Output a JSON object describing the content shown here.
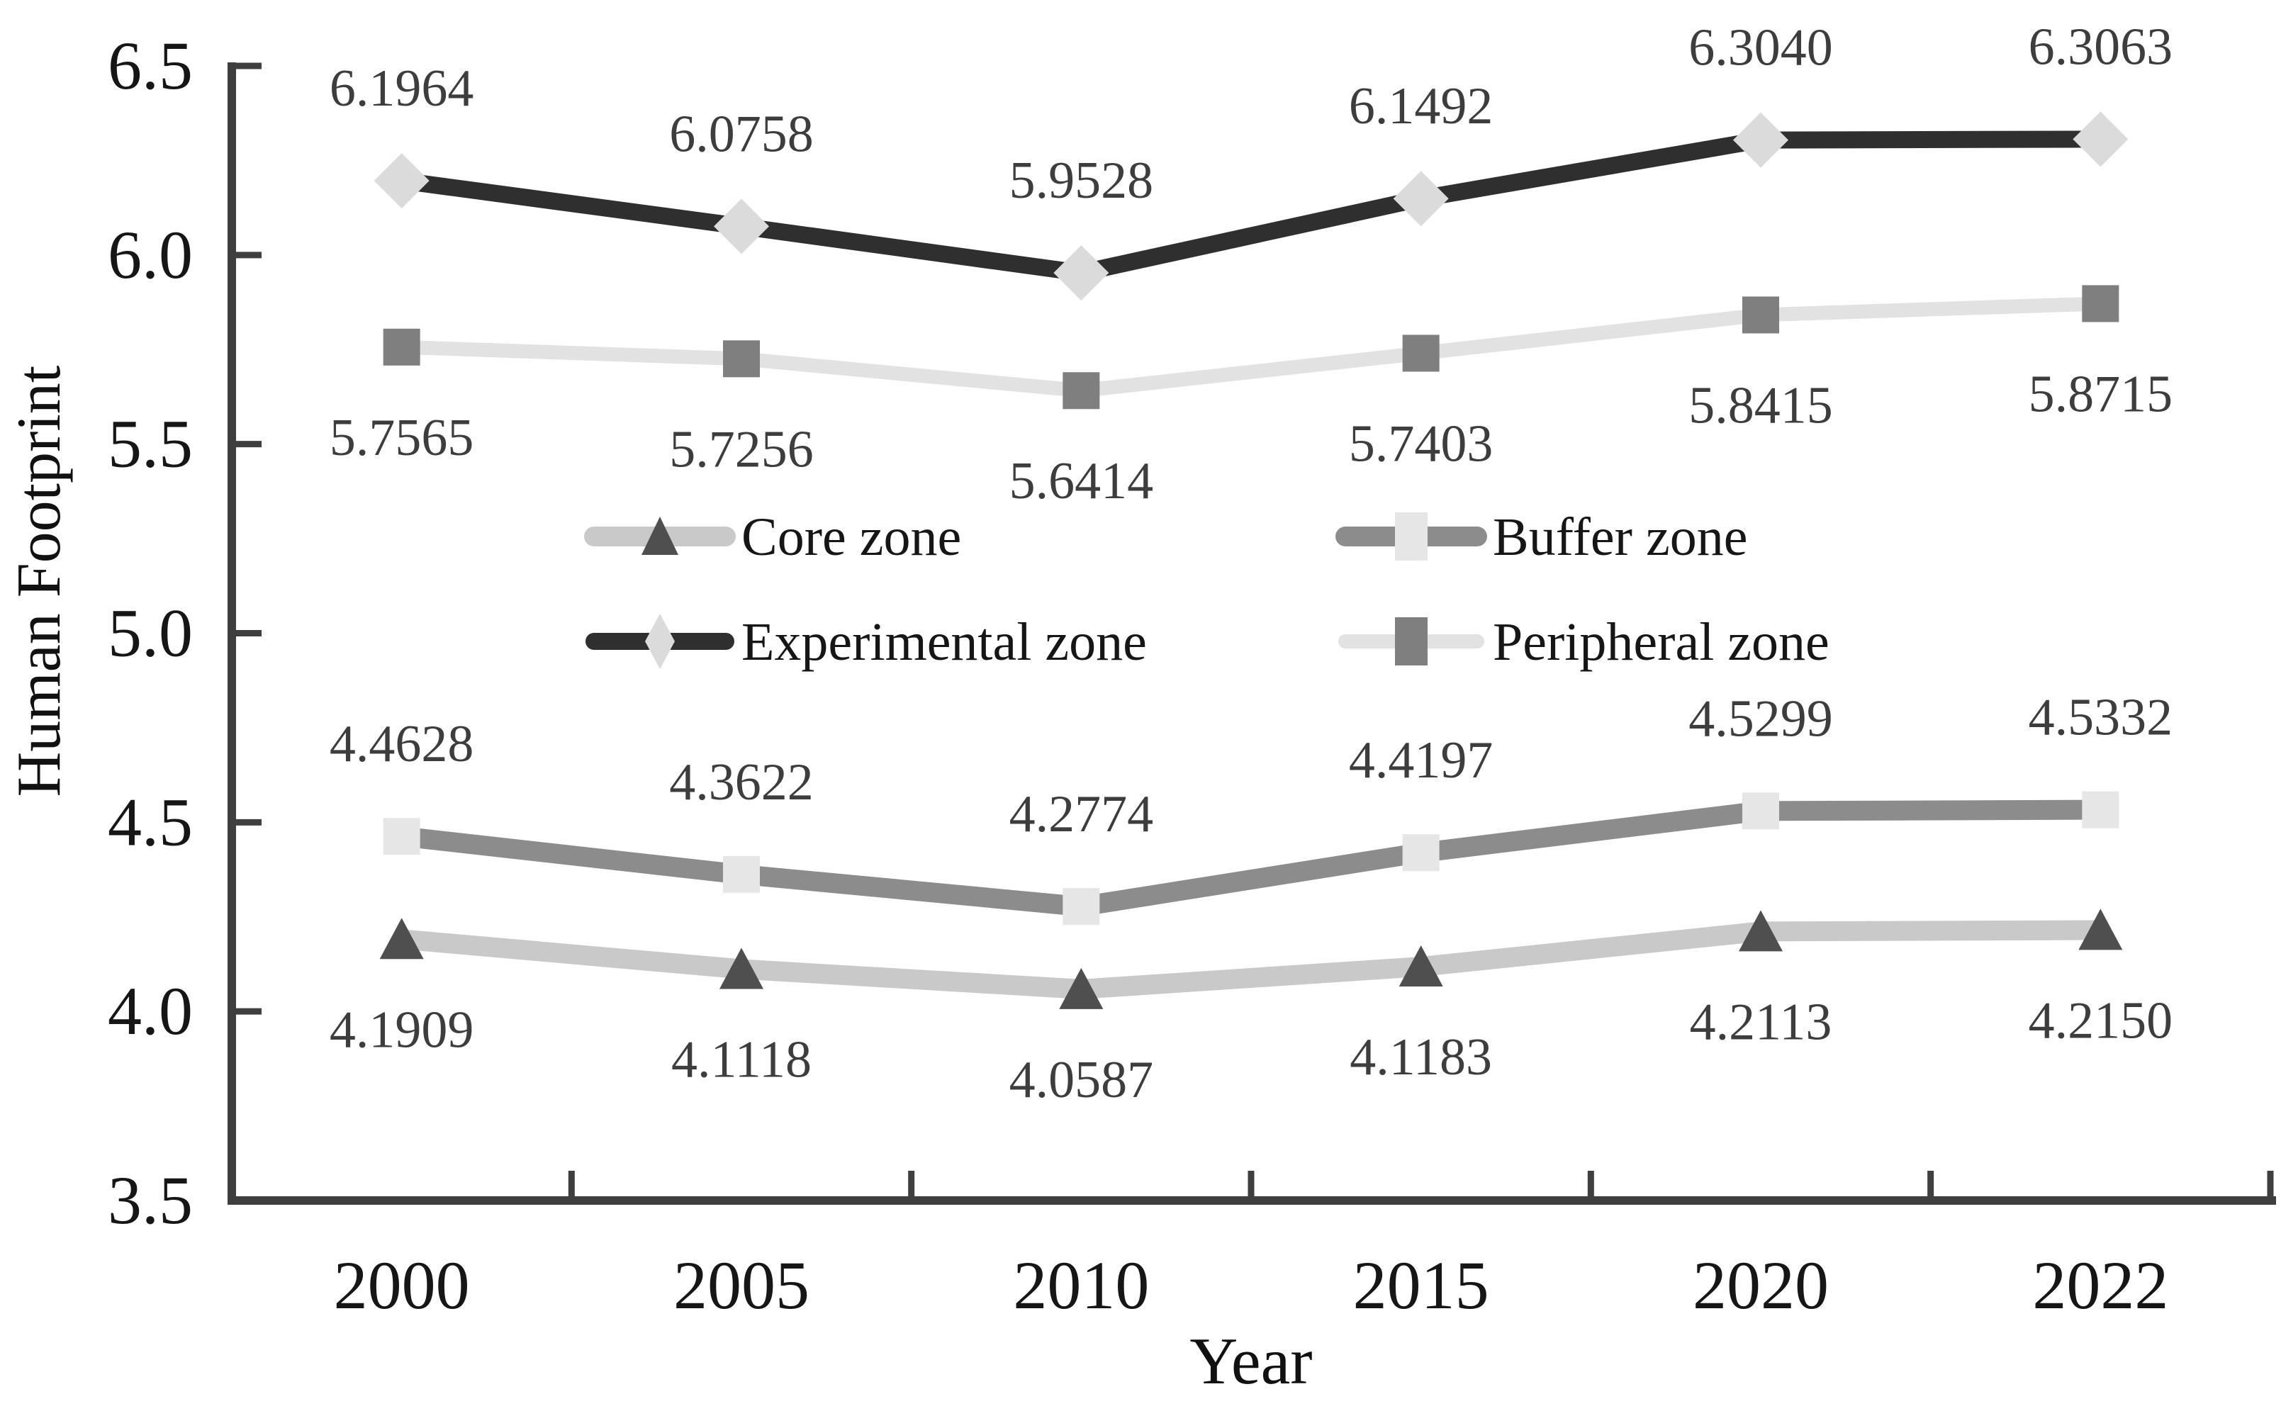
{
  "chart_data": {
    "type": "line",
    "title": "",
    "xlabel": "Year",
    "ylabel": "Human Footprint",
    "categories": [
      "2000",
      "2005",
      "2010",
      "2015",
      "2020",
      "2022"
    ],
    "ylim": [
      3.5,
      6.5
    ],
    "ytick_labels": [
      "6.5",
      "6.0",
      "5.5",
      "5.0",
      "4.5",
      "4.0",
      "3.5"
    ],
    "yticks": [
      6.5,
      6.0,
      5.5,
      5.0,
      4.5,
      4.0,
      3.5
    ],
    "grid": false,
    "axis_color": "#3f3f3f",
    "text_colors": {
      "axis_labels": "#161616",
      "data_labels": "#3d3d3d"
    },
    "legend": {
      "position": "inside-center",
      "rows": [
        [
          "Core zone",
          "Buffer zone"
        ],
        [
          "Experimental zone",
          "Peripheral zone"
        ]
      ]
    },
    "series": [
      {
        "name": "Core zone",
        "marker": "triangle",
        "line_color": "#c9c9c9",
        "marker_color": "#4f4f4f",
        "line_width": 28,
        "label_position": "below",
        "values": [
          4.1909,
          4.1118,
          4.0587,
          4.1183,
          4.2113,
          4.215
        ],
        "labels": [
          "4.1909",
          "4.1118",
          "4.0587",
          "4.1183",
          "4.2113",
          "4.2150"
        ]
      },
      {
        "name": "Buffer zone",
        "marker": "square",
        "line_color": "#8c8c8c",
        "marker_color": "#e6e6e6",
        "line_width": 28,
        "label_position": "above",
        "values": [
          4.4628,
          4.3622,
          4.2774,
          4.4197,
          4.5299,
          4.5332
        ],
        "labels": [
          "4.4628",
          "4.3622",
          "4.2774",
          "4.4197",
          "4.5299",
          "4.5332"
        ]
      },
      {
        "name": "Experimental zone",
        "marker": "diamond",
        "line_color": "#2f2f2f",
        "marker_color": "#dbdbdb",
        "line_width": 24,
        "label_position": "above",
        "values": [
          6.1964,
          6.0758,
          5.9528,
          6.1492,
          6.304,
          6.3063
        ],
        "labels": [
          "6.1964",
          "6.0758",
          "5.9528",
          "6.1492",
          "6.3040",
          "6.3063"
        ]
      },
      {
        "name": "Peripheral zone",
        "marker": "square",
        "line_color": "#e2e2e2",
        "marker_color": "#7f7f7f",
        "line_width": 20,
        "label_position": "below",
        "values": [
          5.7565,
          5.7256,
          5.6414,
          5.7403,
          5.8415,
          5.8715
        ],
        "labels": [
          "5.7565",
          "5.7256",
          "5.6414",
          "5.7403",
          "5.8415",
          "5.8715"
        ]
      }
    ]
  }
}
